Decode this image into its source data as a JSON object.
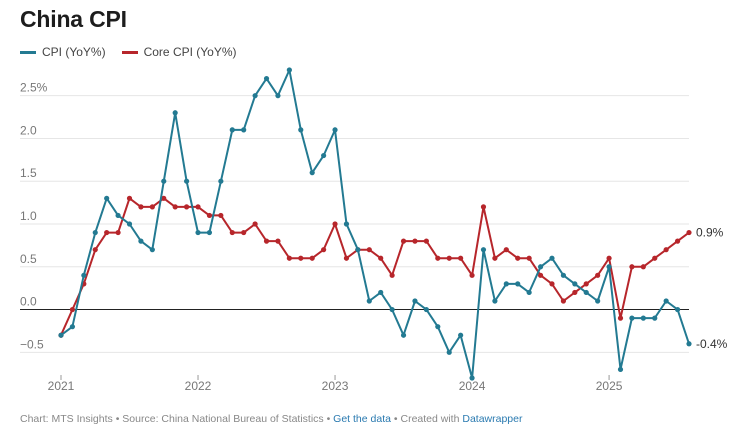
{
  "title": "China CPI",
  "colors": {
    "cpi": "#237a92",
    "core": "#b7262b",
    "grid": "#e6e6e6",
    "zero": "#222222"
  },
  "legend": [
    {
      "name": "CPI (YoY%)",
      "color": "#237a92"
    },
    {
      "name": "Core CPI (YoY%)",
      "color": "#b7262b"
    }
  ],
  "footer": {
    "chart_by": "Chart: MTS Insights",
    "source": "Source: China National Bureau of Statistics",
    "get_data": "Get the data",
    "created": "Created with",
    "tool": "Datawrapper",
    "sep": " • "
  },
  "chart_data": {
    "type": "line",
    "x_start": "2021-01",
    "x": [
      "2021-01",
      "2021-02",
      "2021-03",
      "2021-04",
      "2021-05",
      "2021-06",
      "2021-07",
      "2021-08",
      "2021-09",
      "2021-10",
      "2021-11",
      "2021-12",
      "2022-01",
      "2022-02",
      "2022-03",
      "2022-04",
      "2022-05",
      "2022-06",
      "2022-07",
      "2022-08",
      "2022-09",
      "2022-10",
      "2022-11",
      "2022-12",
      "2023-01",
      "2023-02",
      "2023-03",
      "2023-04",
      "2023-05",
      "2023-06",
      "2023-07",
      "2023-08",
      "2023-09",
      "2023-10",
      "2023-11",
      "2023-12",
      "2024-01",
      "2024-02",
      "2024-03",
      "2024-04",
      "2024-05",
      "2024-06",
      "2024-07",
      "2024-08",
      "2024-09",
      "2024-10",
      "2024-11",
      "2024-12",
      "2025-01",
      "2025-02",
      "2025-03",
      "2025-04",
      "2025-05",
      "2025-06",
      "2025-07",
      "2025-08"
    ],
    "series": [
      {
        "name": "CPI (YoY%)",
        "values": [
          -0.3,
          -0.2,
          0.4,
          0.9,
          1.3,
          1.1,
          1.0,
          0.8,
          0.7,
          1.5,
          2.3,
          1.5,
          0.9,
          0.9,
          1.5,
          2.1,
          2.1,
          2.5,
          2.7,
          2.5,
          2.8,
          2.1,
          1.6,
          1.8,
          2.1,
          1.0,
          0.7,
          0.1,
          0.2,
          0.0,
          -0.3,
          0.1,
          0.0,
          -0.2,
          -0.5,
          -0.3,
          -0.8,
          0.7,
          0.1,
          0.3,
          0.3,
          0.2,
          0.5,
          0.6,
          0.4,
          0.3,
          0.2,
          0.1,
          0.5,
          -0.7,
          -0.1,
          -0.1,
          -0.1,
          0.1,
          0.0,
          -0.4
        ]
      },
      {
        "name": "Core CPI (YoY%)",
        "values": [
          -0.3,
          0.0,
          0.3,
          0.7,
          0.9,
          0.9,
          1.3,
          1.2,
          1.2,
          1.3,
          1.2,
          1.2,
          1.2,
          1.1,
          1.1,
          0.9,
          0.9,
          1.0,
          0.8,
          0.8,
          0.6,
          0.6,
          0.6,
          0.7,
          1.0,
          0.6,
          0.7,
          0.7,
          0.6,
          0.4,
          0.8,
          0.8,
          0.8,
          0.6,
          0.6,
          0.6,
          0.4,
          1.2,
          0.6,
          0.7,
          0.6,
          0.6,
          0.4,
          0.3,
          0.1,
          0.2,
          0.3,
          0.4,
          0.6,
          -0.1,
          0.5,
          0.5,
          0.6,
          0.7,
          0.8,
          0.9
        ]
      }
    ],
    "end_labels": [
      "-0.4%",
      "0.9%"
    ],
    "y_ticks": [
      -0.5,
      0.0,
      0.5,
      1.0,
      1.5,
      2.0,
      2.5
    ],
    "y_tick_labels": [
      "−0.5",
      "0.0",
      "0.5",
      "1.0",
      "1.5",
      "2.0",
      "2.5%"
    ],
    "x_ticks": [
      {
        "date": "2021-01",
        "label": "2021"
      },
      {
        "date": "2022-01",
        "label": "2022"
      },
      {
        "date": "2023-01",
        "label": "2023"
      },
      {
        "date": "2024-01",
        "label": "2024"
      },
      {
        "date": "2025-01",
        "label": "2025"
      }
    ],
    "ylim": [
      -0.8,
      2.8
    ],
    "grid": true,
    "legend_position": "top-left"
  }
}
